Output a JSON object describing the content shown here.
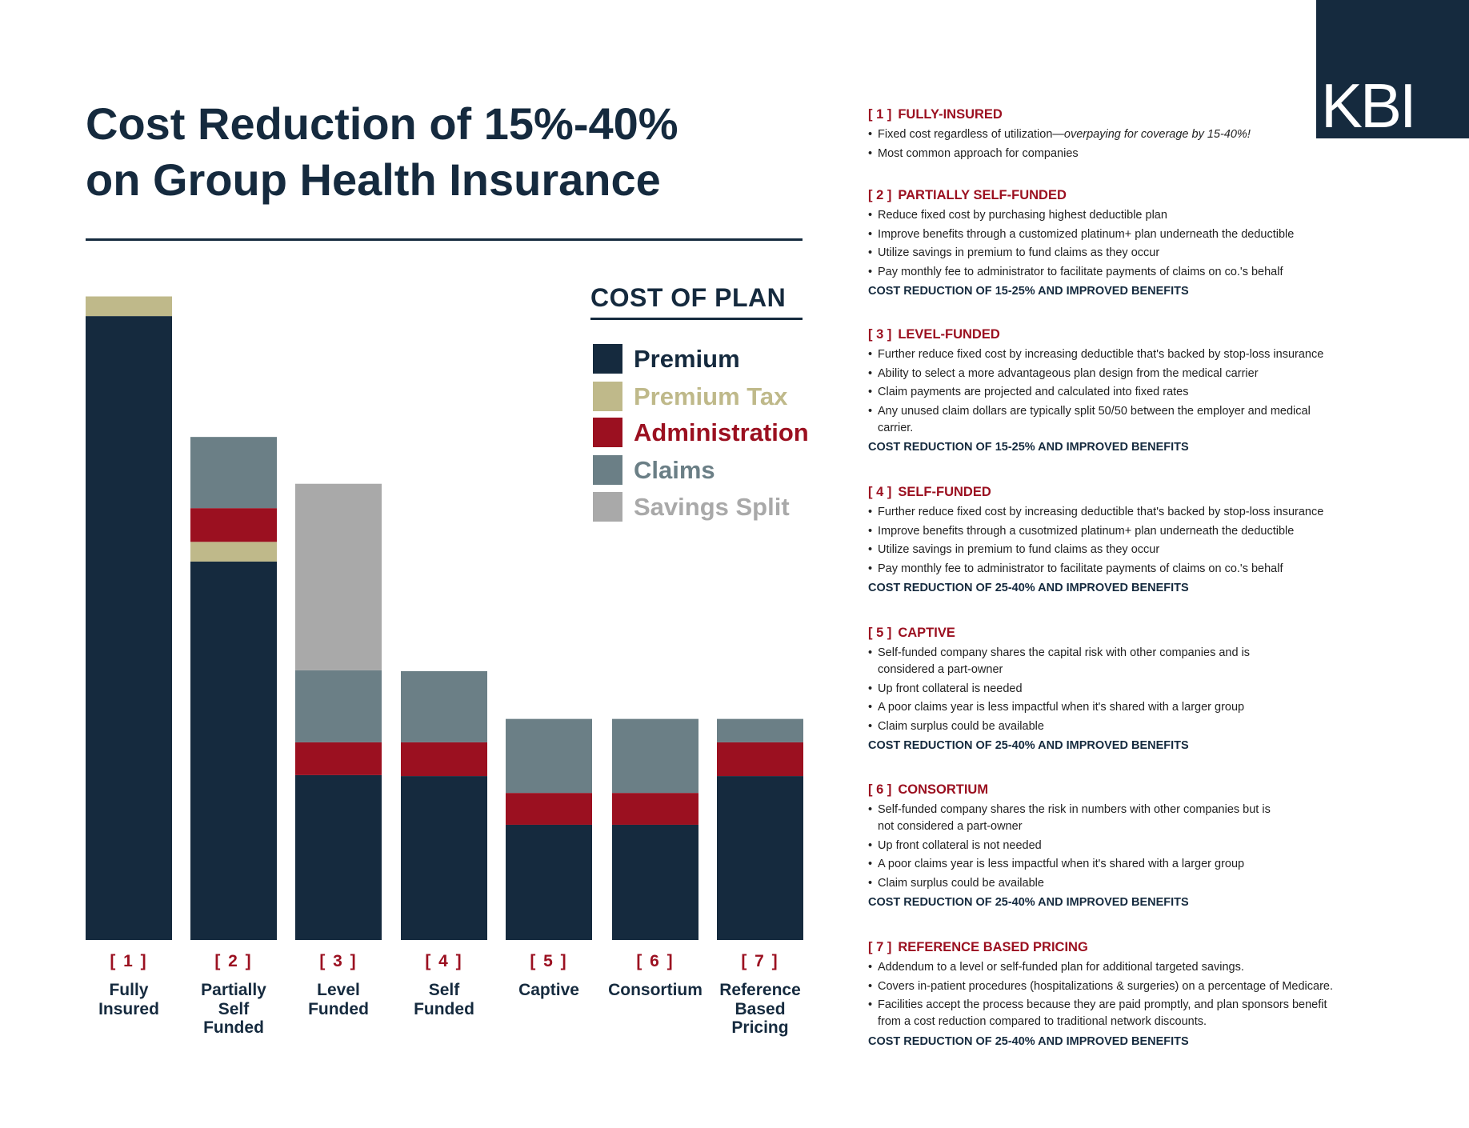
{
  "brand": "KBI",
  "title": "Cost Reduction of 15%-40%\non Group Health Insurance",
  "chart_data": {
    "type": "bar",
    "stacked": true,
    "legend_title": "COST OF PLAN",
    "category_numbers": [
      "[ 1 ]",
      "[ 2 ]",
      "[ 3 ]",
      "[ 4 ]",
      "[ 5 ]",
      "[ 6 ]",
      "[ 7 ]"
    ],
    "categories": [
      "Fully\nInsured",
      "Partially\nSelf\nFunded",
      "Level\nFunded",
      "Self\nFunded",
      "Captive",
      "Consortium",
      "Reference\nBased\nPricing"
    ],
    "series": [
      {
        "name": "Premium",
        "color": "#152a3e",
        "values": [
          666,
          404,
          176,
          175,
          123,
          123,
          175
        ]
      },
      {
        "name": "Premium Tax",
        "color": "#bfb98a",
        "values": [
          21,
          21,
          null,
          null,
          null,
          null,
          null
        ]
      },
      {
        "name": "Administration",
        "color": "#9b1020",
        "values": [
          null,
          36,
          35,
          36,
          34,
          34,
          36
        ]
      },
      {
        "name": "Claims",
        "color": "#6b7f86",
        "values": [
          null,
          76,
          77,
          76,
          79,
          79,
          25
        ]
      },
      {
        "name": "Savings Split",
        "color": "#a9a9a9",
        "values": [
          null,
          null,
          199,
          null,
          null,
          null,
          null
        ]
      }
    ]
  },
  "plans": [
    {
      "number": "[ 1 ]",
      "title": "FULLY-INSURED",
      "bullets": [
        {
          "text": "Fixed cost regardless of utilization—",
          "emphasis": "overpaying for coverage by 15-40%!"
        },
        "Most common approach for companies"
      ],
      "summary": null
    },
    {
      "number": "[ 2 ]",
      "title": "PARTIALLY SELF-FUNDED",
      "bullets": [
        "Reduce fixed cost by purchasing highest deductible plan",
        "Improve benefits through a customized platinum+ plan underneath the deductible",
        "Utilize savings in premium to fund claims as they occur",
        "Pay monthly fee to administrator to facilitate payments of claims on co.'s behalf"
      ],
      "summary": "COST REDUCTION OF 15-25% AND IMPROVED BENEFITS"
    },
    {
      "number": "[ 3 ]",
      "title": "LEVEL-FUNDED",
      "bullets": [
        "Further reduce fixed cost by increasing deductible that's backed by stop-loss insurance",
        "Ability to select a more advantageous plan design from the medical carrier",
        "Claim payments are projected and calculated into fixed rates",
        "Any unused claim dollars are typically split 50/50 between the employer and medical\ncarrier."
      ],
      "summary": "COST REDUCTION OF 15-25% AND IMPROVED BENEFITS"
    },
    {
      "number": "[ 4 ]",
      "title": "SELF-FUNDED",
      "bullets": [
        "Further reduce fixed cost by increasing deductible that's backed by stop-loss insurance",
        "Improve benefits through a cusotmized platinum+ plan underneath the deductible",
        "Utilize savings in premium to fund claims as they occur",
        "Pay monthly fee to administrator to facilitate payments of claims on co.'s behalf"
      ],
      "summary": "COST REDUCTION OF 25-40% AND IMPROVED BENEFITS"
    },
    {
      "number": "[ 5 ]",
      "title": "CAPTIVE",
      "bullets": [
        "Self-funded company shares the capital risk with other companies and is\nconsidered a part-owner",
        "Up front collateral is needed",
        "A poor claims year is less impactful when it's shared with a larger group",
        "Claim surplus could be available"
      ],
      "summary": "COST REDUCTION OF 25-40% AND IMPROVED BENEFITS"
    },
    {
      "number": "[ 6 ]",
      "title": "CONSORTIUM",
      "bullets": [
        "Self-funded company shares the risk in numbers with other companies but is\nnot considered a part-owner",
        "Up front collateral is not needed",
        "A poor claims year is less impactful when it's shared with a larger group",
        "Claim surplus could be available"
      ],
      "summary": "COST REDUCTION OF 25-40% AND IMPROVED BENEFITS"
    },
    {
      "number": "[ 7 ]",
      "title": "REFERENCE BASED PRICING",
      "bullets": [
        "Addendum to a level or self-funded plan for additional targeted savings.",
        "Covers in-patient procedures (hospitalizations & surgeries) on a percentage of Medicare.",
        "Facilities accept the process because they are paid promptly, and plan sponsors benefit\nfrom a cost reduction compared to traditional network discounts."
      ],
      "summary": "COST REDUCTION OF 25-40% AND IMPROVED BENEFITS"
    }
  ]
}
